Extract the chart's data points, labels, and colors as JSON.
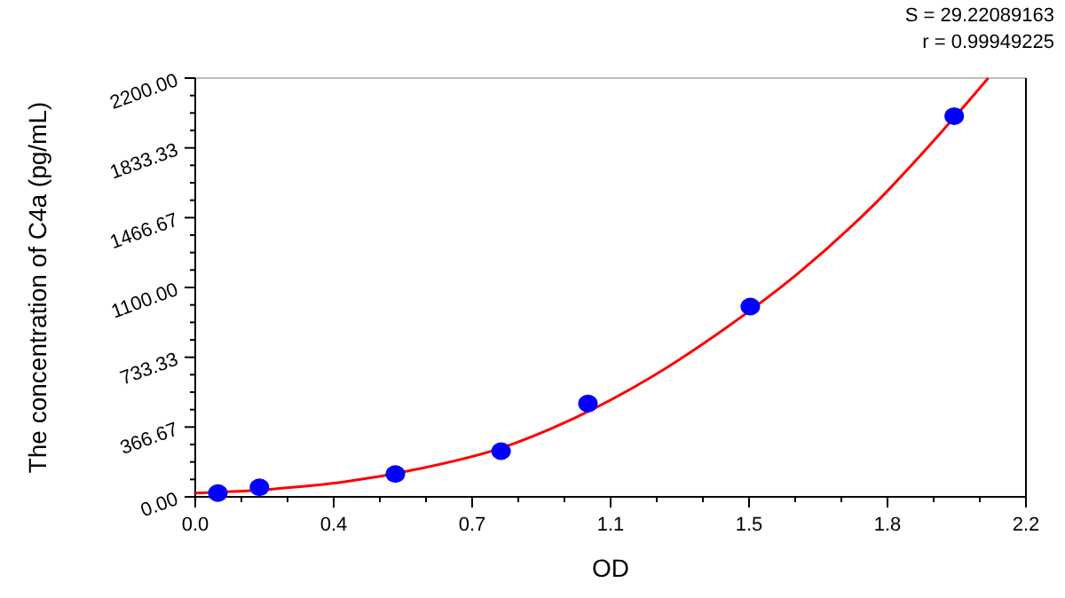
{
  "chart_data": {
    "type": "scatter",
    "xlabel": "OD",
    "ylabel": "The concentration of C4a (pg/mL)",
    "annotations": [
      "S = 29.22089163",
      "r = 0.99949225"
    ],
    "xlim": [
      0,
      2.2
    ],
    "ylim": [
      0,
      2200
    ],
    "xticks": [
      {
        "value": 0,
        "label": "0.0"
      },
      {
        "value": 0.3667,
        "label": "0.4"
      },
      {
        "value": 0.7333,
        "label": "0.7"
      },
      {
        "value": 1.1,
        "label": "1.1"
      },
      {
        "value": 1.4667,
        "label": "1.5"
      },
      {
        "value": 1.8333,
        "label": "1.8"
      },
      {
        "value": 2.2,
        "label": "2.2"
      }
    ],
    "yticks": [
      {
        "value": 0,
        "label": "0.00"
      },
      {
        "value": 366.67,
        "label": "366.67"
      },
      {
        "value": 733.33,
        "label": "733.33"
      },
      {
        "value": 1100,
        "label": "1100.00"
      },
      {
        "value": 1466.67,
        "label": "1466.67"
      },
      {
        "value": 1833.33,
        "label": "1833.33"
      },
      {
        "value": 2200,
        "label": "2200.00"
      }
    ],
    "grid": false,
    "series": [
      {
        "type": "line",
        "color": "#ff0000",
        "marker": "none",
        "line_style": "solid",
        "x": [
          0,
          0.2,
          0.4,
          0.6,
          0.8,
          1.0,
          1.2,
          1.4,
          1.6,
          1.8,
          2.0,
          2.1
        ],
        "values": [
          20,
          40,
          80,
          150,
          250,
          410,
          620,
          880,
          1180,
          1540,
          1970,
          2200
        ]
      },
      {
        "color": "#0000ff",
        "marker": "circle",
        "x": [
          0.06,
          0.17,
          0.53,
          0.81,
          1.04,
          1.47,
          2.01
        ],
        "values": [
          20,
          50,
          120,
          240,
          490,
          1000,
          2000
        ]
      }
    ]
  }
}
